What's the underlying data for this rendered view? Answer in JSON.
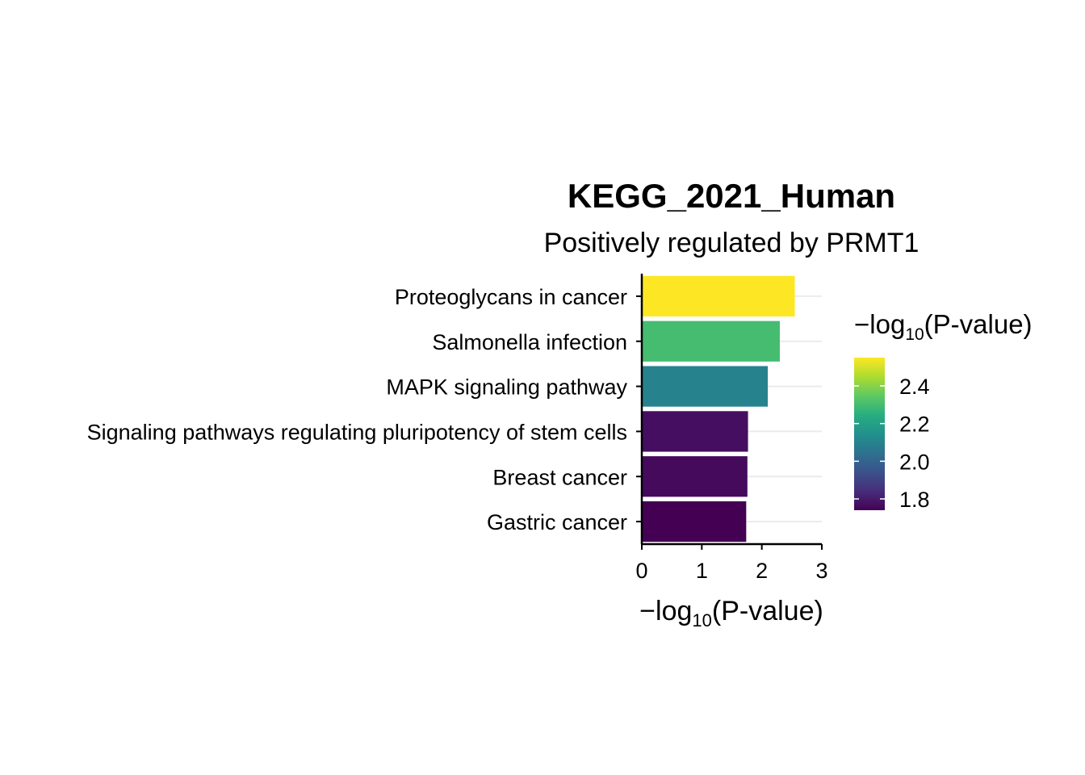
{
  "chart_data": {
    "type": "bar",
    "orientation": "horizontal",
    "title": "KEGG_2021_Human",
    "subtitle": "Positively regulated by PRMT1",
    "categories": [
      "Proteoglycans in cancer",
      "Salmonella infection",
      "MAPK signaling pathway",
      "Signaling pathways regulating pluripotency of stem cells",
      "Breast cancer",
      "Gastric cancer"
    ],
    "values": [
      2.55,
      2.3,
      2.1,
      1.77,
      1.76,
      1.74
    ],
    "xlabel": {
      "prefix": "−log",
      "sub": "10",
      "suffix": "(P-value)"
    },
    "ylabel": "",
    "xlim": [
      0,
      3
    ],
    "xticks": [
      "0",
      "1",
      "2",
      "3"
    ],
    "grid": "horizontal-major",
    "colorscale": "viridis",
    "color_range": [
      1.74,
      2.55
    ],
    "legend": {
      "position": "right",
      "title": {
        "prefix": "−log",
        "sub": "10",
        "suffix": "(P-value)"
      },
      "ticks": [
        "1.8",
        "2.0",
        "2.2",
        "2.4"
      ]
    }
  }
}
